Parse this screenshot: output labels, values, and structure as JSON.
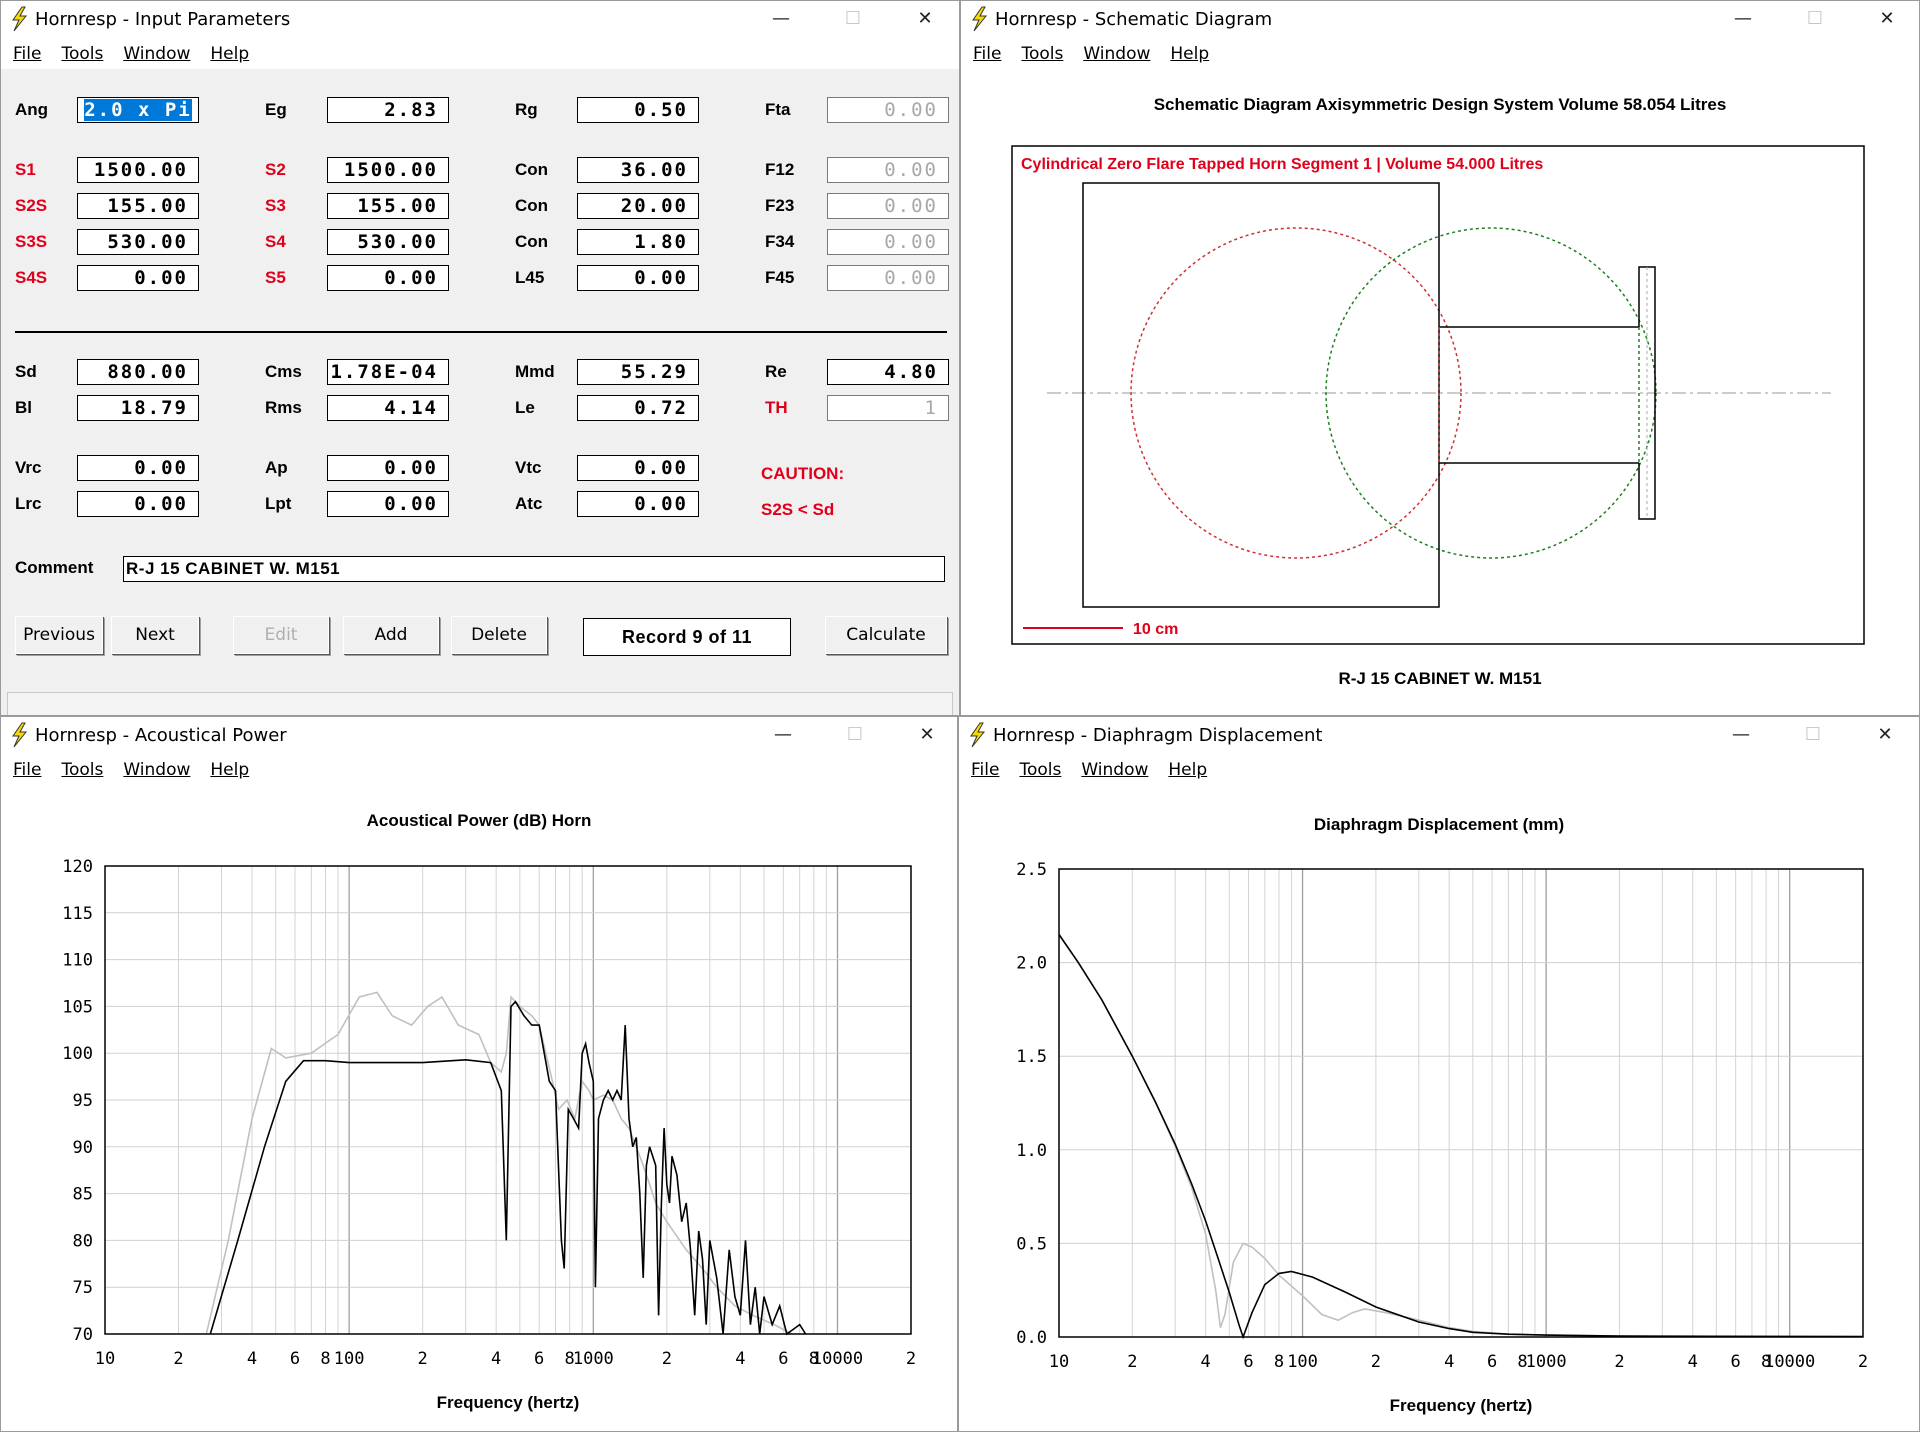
{
  "menu": [
    "File",
    "Tools",
    "Window",
    "Help"
  ],
  "window_controls": {
    "minimize": "—",
    "maximize": "☐",
    "close": "✕"
  },
  "input_window": {
    "title": "Hornresp - Input Parameters",
    "rows": [
      [
        {
          "l": "Ang",
          "v": "2.0 x Pi",
          "sel": true
        },
        {
          "l": "Eg",
          "v": "2.83"
        },
        {
          "l": "Rg",
          "v": "0.50"
        },
        {
          "l": "Fta",
          "v": "0.00",
          "dis": true
        }
      ],
      [
        {
          "l": "S1",
          "v": "1500.00",
          "red": true
        },
        {
          "l": "S2",
          "v": "1500.00",
          "red": true
        },
        {
          "l": "Con",
          "v": "36.00"
        },
        {
          "l": "F12",
          "v": "0.00",
          "dis": true
        }
      ],
      [
        {
          "l": "S2S",
          "v": "155.00",
          "red": true
        },
        {
          "l": "S3",
          "v": "155.00",
          "red": true
        },
        {
          "l": "Con",
          "v": "20.00"
        },
        {
          "l": "F23",
          "v": "0.00",
          "dis": true
        }
      ],
      [
        {
          "l": "S3S",
          "v": "530.00",
          "red": true
        },
        {
          "l": "S4",
          "v": "530.00",
          "red": true
        },
        {
          "l": "Con",
          "v": "1.80"
        },
        {
          "l": "F34",
          "v": "0.00",
          "dis": true
        }
      ],
      [
        {
          "l": "S4S",
          "v": "0.00",
          "red": true
        },
        {
          "l": "S5",
          "v": "0.00",
          "red": true
        },
        {
          "l": "L45",
          "v": "0.00"
        },
        {
          "l": "F45",
          "v": "0.00",
          "dis": true
        }
      ],
      [
        {
          "l": "Sd",
          "v": "880.00"
        },
        {
          "l": "Cms",
          "v": "1.78E-04"
        },
        {
          "l": "Mmd",
          "v": "55.29"
        },
        {
          "l": "Re",
          "v": "4.80"
        }
      ],
      [
        {
          "l": "Bl",
          "v": "18.79"
        },
        {
          "l": "Rms",
          "v": "4.14"
        },
        {
          "l": "Le",
          "v": "0.72"
        },
        {
          "l": "TH",
          "v": "1",
          "red": true,
          "dis": true
        }
      ],
      [
        {
          "l": "Vrc",
          "v": "0.00"
        },
        {
          "l": "Ap",
          "v": "0.00"
        },
        {
          "l": "Vtc",
          "v": "0.00"
        }
      ],
      [
        {
          "l": "Lrc",
          "v": "0.00"
        },
        {
          "l": "Lpt",
          "v": "0.00"
        },
        {
          "l": "Atc",
          "v": "0.00"
        }
      ]
    ],
    "caution_title": "CAUTION:",
    "caution_text": "S2S < Sd",
    "comment_label": "Comment",
    "comment_value": "R-J 15 CABINET W. M151",
    "buttons": {
      "previous": "Previous",
      "next": "Next",
      "edit": "Edit",
      "add": "Add",
      "delete": "Delete",
      "calculate": "Calculate"
    },
    "record": "Record 9 of 11"
  },
  "schematic_window": {
    "title": "Hornresp - Schematic Diagram",
    "header": "Schematic Diagram   Axisymmetric Design   System Volume 58.054 Litres",
    "segment_label": "Cylindrical Zero Flare Tapped Horn Segment 1 | Volume 54.000 Litres",
    "scale_label": "10 cm",
    "caption": "R-J 15 CABINET W. M151"
  },
  "power_window": {
    "title": "Hornresp - Acoustical Power",
    "chart_title": "Acoustical Power (dB)   Horn"
  },
  "disp_window": {
    "title": "Hornresp - Diaphragm Displacement",
    "chart_title": "Diaphragm Displacement (mm)"
  },
  "chart_data": [
    {
      "type": "line",
      "title": "Acoustical Power (dB)   Horn",
      "xlabel": "Frequency (hertz)",
      "ylabel": "",
      "xscale": "log",
      "xlim": [
        10,
        20000
      ],
      "ylim": [
        70,
        120
      ],
      "yticks": [
        "120",
        "115",
        "110",
        "105",
        "100",
        "95",
        "90",
        "85",
        "80",
        "75",
        "70"
      ],
      "xticks": [
        {
          "v": 10,
          "t": "10"
        },
        {
          "v": 20,
          "t": "2"
        },
        {
          "v": 40,
          "t": "4"
        },
        {
          "v": 60,
          "t": "6"
        },
        {
          "v": 80,
          "t": "8"
        },
        {
          "v": 100,
          "t": "100"
        },
        {
          "v": 200,
          "t": "2"
        },
        {
          "v": 400,
          "t": "4"
        },
        {
          "v": 600,
          "t": "6"
        },
        {
          "v": 800,
          "t": "8"
        },
        {
          "v": 1000,
          "t": "1000"
        },
        {
          "v": 2000,
          "t": "2"
        },
        {
          "v": 4000,
          "t": "4"
        },
        {
          "v": 6000,
          "t": "6"
        },
        {
          "v": 8000,
          "t": "8"
        },
        {
          "v": 10000,
          "t": "10000"
        },
        {
          "v": 20000,
          "t": "2"
        }
      ],
      "series": [
        {
          "color": "#000000",
          "points": [
            [
              27,
              70
            ],
            [
              35,
              80
            ],
            [
              45,
              90
            ],
            [
              55,
              97
            ],
            [
              65,
              99.2
            ],
            [
              80,
              99.2
            ],
            [
              100,
              99
            ],
            [
              150,
              99
            ],
            [
              200,
              99
            ],
            [
              300,
              99.3
            ],
            [
              380,
              99
            ],
            [
              420,
              96
            ],
            [
              440,
              80
            ],
            [
              460,
              105
            ],
            [
              480,
              105.5
            ],
            [
              520,
              104
            ],
            [
              560,
              103
            ],
            [
              600,
              103
            ],
            [
              660,
              97
            ],
            [
              700,
              96
            ],
            [
              740,
              80
            ],
            [
              760,
              77
            ],
            [
              790,
              94
            ],
            [
              830,
              93
            ],
            [
              870,
              92
            ],
            [
              900,
              100
            ],
            [
              930,
              101
            ],
            [
              960,
              99
            ],
            [
              1000,
              97
            ],
            [
              1020,
              75
            ],
            [
              1050,
              93
            ],
            [
              1100,
              95
            ],
            [
              1150,
              96
            ],
            [
              1200,
              95
            ],
            [
              1250,
              96
            ],
            [
              1300,
              95
            ],
            [
              1350,
              103
            ],
            [
              1400,
              93
            ],
            [
              1450,
              90
            ],
            [
              1500,
              91
            ],
            [
              1550,
              85
            ],
            [
              1600,
              76
            ],
            [
              1650,
              88
            ],
            [
              1700,
              90
            ],
            [
              1750,
              89
            ],
            [
              1800,
              88
            ],
            [
              1850,
              72
            ],
            [
              1900,
              84
            ],
            [
              1950,
              92
            ],
            [
              2000,
              86
            ],
            [
              2050,
              84
            ],
            [
              2100,
              89
            ],
            [
              2200,
              87
            ],
            [
              2300,
              82
            ],
            [
              2400,
              84
            ],
            [
              2500,
              79
            ],
            [
              2600,
              72
            ],
            [
              2700,
              81
            ],
            [
              2800,
              78
            ],
            [
              2900,
              71
            ],
            [
              3000,
              80
            ],
            [
              3200,
              76
            ],
            [
              3400,
              70
            ],
            [
              3600,
              79
            ],
            [
              3800,
              74
            ],
            [
              4000,
              72
            ],
            [
              4200,
              80
            ],
            [
              4400,
              71
            ],
            [
              4600,
              75
            ],
            [
              4800,
              70
            ],
            [
              5000,
              74
            ],
            [
              5400,
              71
            ],
            [
              5800,
              73
            ],
            [
              6200,
              70
            ],
            [
              7000,
              71
            ],
            [
              7400,
              70
            ]
          ]
        },
        {
          "color": "#c0c0c0",
          "points": [
            [
              26,
              70
            ],
            [
              32,
              80
            ],
            [
              40,
              93
            ],
            [
              48,
              100.5
            ],
            [
              55,
              99.5
            ],
            [
              70,
              100
            ],
            [
              90,
              102
            ],
            [
              110,
              106
            ],
            [
              130,
              106.5
            ],
            [
              150,
              104
            ],
            [
              180,
              103
            ],
            [
              210,
              105
            ],
            [
              240,
              106
            ],
            [
              280,
              103
            ],
            [
              340,
              102
            ],
            [
              380,
              99
            ],
            [
              420,
              98
            ],
            [
              440,
              100
            ],
            [
              460,
              106
            ],
            [
              500,
              105
            ],
            [
              560,
              104
            ],
            [
              600,
              103
            ],
            [
              680,
              97
            ],
            [
              720,
              94
            ],
            [
              780,
              95
            ],
            [
              840,
              93
            ],
            [
              900,
              97
            ],
            [
              960,
              96
            ],
            [
              1000,
              95
            ],
            [
              1100,
              95.5
            ],
            [
              1200,
              95
            ],
            [
              1300,
              93
            ],
            [
              1400,
              92
            ],
            [
              1500,
              90
            ],
            [
              1600,
              88
            ],
            [
              1700,
              86
            ],
            [
              1800,
              84
            ],
            [
              2000,
              82
            ],
            [
              2400,
              79
            ],
            [
              2800,
              77
            ],
            [
              3200,
              75
            ],
            [
              3800,
              73
            ],
            [
              4500,
              72
            ],
            [
              5500,
              71
            ],
            [
              6500,
              70
            ]
          ]
        }
      ]
    },
    {
      "type": "line",
      "title": "Diaphragm Displacement (mm)",
      "xlabel": "Frequency (hertz)",
      "ylabel": "",
      "xscale": "log",
      "xlim": [
        10,
        20000
      ],
      "ylim": [
        0,
        2.5
      ],
      "yticks": [
        "2.5",
        "2.0",
        "1.5",
        "1.0",
        "0.5",
        "0.0"
      ],
      "xticks": [
        {
          "v": 10,
          "t": "10"
        },
        {
          "v": 20,
          "t": "2"
        },
        {
          "v": 40,
          "t": "4"
        },
        {
          "v": 60,
          "t": "6"
        },
        {
          "v": 80,
          "t": "8"
        },
        {
          "v": 100,
          "t": "100"
        },
        {
          "v": 200,
          "t": "2"
        },
        {
          "v": 400,
          "t": "4"
        },
        {
          "v": 600,
          "t": "6"
        },
        {
          "v": 800,
          "t": "8"
        },
        {
          "v": 1000,
          "t": "1000"
        },
        {
          "v": 2000,
          "t": "2"
        },
        {
          "v": 4000,
          "t": "4"
        },
        {
          "v": 6000,
          "t": "6"
        },
        {
          "v": 8000,
          "t": "8"
        },
        {
          "v": 10000,
          "t": "10000"
        },
        {
          "v": 20000,
          "t": "2"
        }
      ],
      "series": [
        {
          "color": "#000000",
          "points": [
            [
              10,
              2.15
            ],
            [
              12,
              2.0
            ],
            [
              15,
              1.8
            ],
            [
              20,
              1.5
            ],
            [
              25,
              1.25
            ],
            [
              30,
              1.03
            ],
            [
              35,
              0.82
            ],
            [
              40,
              0.62
            ],
            [
              45,
              0.42
            ],
            [
              50,
              0.24
            ],
            [
              55,
              0.06
            ],
            [
              57,
              0.0
            ],
            [
              62,
              0.13
            ],
            [
              70,
              0.28
            ],
            [
              80,
              0.34
            ],
            [
              90,
              0.35
            ],
            [
              110,
              0.32
            ],
            [
              150,
              0.24
            ],
            [
              200,
              0.16
            ],
            [
              300,
              0.08
            ],
            [
              400,
              0.045
            ],
            [
              500,
              0.025
            ],
            [
              700,
              0.015
            ],
            [
              1000,
              0.01
            ],
            [
              2000,
              0.005
            ],
            [
              20000,
              0.002
            ]
          ]
        },
        {
          "color": "#c0c0c0",
          "points": [
            [
              10,
              2.15
            ],
            [
              12,
              2.0
            ],
            [
              15,
              1.8
            ],
            [
              20,
              1.5
            ],
            [
              25,
              1.25
            ],
            [
              30,
              1.02
            ],
            [
              35,
              0.8
            ],
            [
              40,
              0.55
            ],
            [
              44,
              0.25
            ],
            [
              46,
              0.05
            ],
            [
              48,
              0.12
            ],
            [
              52,
              0.4
            ],
            [
              57,
              0.5
            ],
            [
              62,
              0.48
            ],
            [
              70,
              0.42
            ],
            [
              80,
              0.33
            ],
            [
              100,
              0.22
            ],
            [
              120,
              0.12
            ],
            [
              140,
              0.09
            ],
            [
              160,
              0.13
            ],
            [
              180,
              0.15
            ],
            [
              220,
              0.13
            ],
            [
              300,
              0.09
            ],
            [
              400,
              0.05
            ],
            [
              500,
              0.03
            ],
            [
              700,
              0.015
            ],
            [
              1000,
              0.01
            ],
            [
              2000,
              0.005
            ],
            [
              20000,
              0.002
            ]
          ]
        }
      ]
    }
  ]
}
